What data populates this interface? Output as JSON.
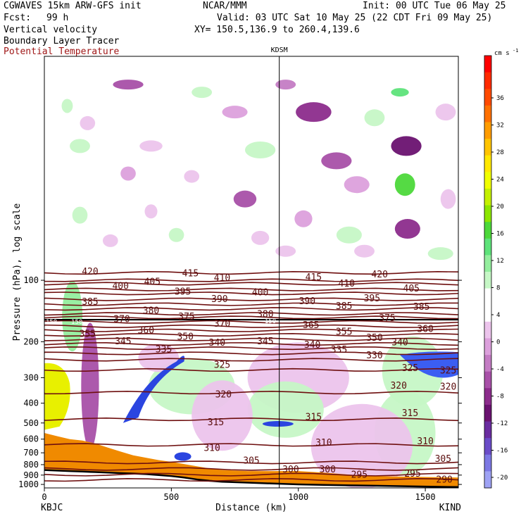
{
  "header": {
    "model": "CGWAVES 15km ARW-GFS init",
    "org": "NCAR/MMM",
    "init": "Init: 00 UTC Tue 06 May 25",
    "fcst_label": "Fcst:",
    "fcst_value": "99 h",
    "valid": "Valid: 03 UTC Sat 10 May 25 (22 CDT Fri 09 May 25)",
    "field1": "Vertical velocity",
    "xy": "XY= 150.5,136.9 to 260.4,139.6",
    "field2": "Boundary Layer Tracer",
    "field3": "Potential Temperature"
  },
  "colors": {
    "theta_line": "#6e0f0f",
    "terrain": "#f08a00",
    "ground": "#000000"
  },
  "chart_data": {
    "type": "cross-section",
    "title": "",
    "xlabel": "Distance (km)",
    "ylabel": "Pressure (hPa), log scale",
    "xlim": [
      0,
      1630
    ],
    "ylim": [
      1040,
      8
    ],
    "y_scale": "log",
    "x_ticks": [
      0,
      500,
      1000,
      1500
    ],
    "y_ticks": [
      100,
      200,
      300,
      400,
      500,
      600,
      700,
      800,
      900,
      1000
    ],
    "left_station": "KBJC",
    "right_station": "KIND",
    "mid_station": "KDSM",
    "mid_station_x": 925,
    "colorbar": {
      "unit": "cm s",
      "unit_exp": "-1",
      "tick_labels": [
        36,
        32,
        28,
        24,
        20,
        16,
        12,
        8,
        4,
        0,
        -4,
        -8,
        -12,
        -16,
        -20
      ],
      "colors": [
        "#ff0000",
        "#ff2a00",
        "#ff4a00",
        "#ff7000",
        "#ff9c00",
        "#ffc400",
        "#ffe800",
        "#f0ff00",
        "#c4f000",
        "#8ce600",
        "#4cd83a",
        "#5ee37a",
        "#94ee9e",
        "#c6f7c6",
        "#ffffff",
        "#ffffff",
        "#ecc4ec",
        "#dca0dc",
        "#c47cc4",
        "#a850a8",
        "#8c2c8c",
        "#6a1270",
        "#6a2ca0",
        "#6a4cc8",
        "#7c78e4",
        "#9ea2f4"
      ]
    },
    "isentropes": [
      {
        "theta": 420,
        "p": 92
      },
      {
        "theta": 415,
        "p": 100
      },
      {
        "theta": 410,
        "p": 104
      },
      {
        "theta": 405,
        "p": 111
      },
      {
        "theta": 400,
        "p": 116
      },
      {
        "theta": 395,
        "p": 124
      },
      {
        "theta": 390,
        "p": 131
      },
      {
        "theta": 385,
        "p": 138
      },
      {
        "theta": 380,
        "p": 146
      },
      {
        "theta": 375,
        "p": 152
      },
      {
        "theta": 370,
        "p": 160
      },
      {
        "theta": 365,
        "p": 168
      },
      {
        "theta": 360,
        "p": 176
      },
      {
        "theta": 355,
        "p": 185
      },
      {
        "theta": 350,
        "p": 195
      },
      {
        "theta": 345,
        "p": 205
      },
      {
        "theta": 340,
        "p": 215
      },
      {
        "theta": 335,
        "p": 228
      },
      {
        "theta": 330,
        "p": 245
      },
      {
        "theta": 325,
        "p": 275
      },
      {
        "theta": 320,
        "p": 355
      },
      {
        "theta": 315,
        "p": 480
      },
      {
        "theta": 310,
        "p": 640
      },
      {
        "theta": 305,
        "p": 780
      },
      {
        "theta": 300,
        "p": 840
      },
      {
        "theta": 295,
        "p": 895
      },
      {
        "theta": 290,
        "p": 950
      }
    ],
    "contour_labels": [
      {
        "text": "420",
        "x": 180,
        "p": 90
      },
      {
        "text": "415",
        "x": 575,
        "p": 92
      },
      {
        "text": "410",
        "x": 700,
        "p": 97
      },
      {
        "text": "400",
        "x": 300,
        "p": 106
      },
      {
        "text": "405",
        "x": 425,
        "p": 101
      },
      {
        "text": "395",
        "x": 545,
        "p": 113
      },
      {
        "text": "390",
        "x": 690,
        "p": 123
      },
      {
        "text": "400",
        "x": 850,
        "p": 114
      },
      {
        "text": "415",
        "x": 1060,
        "p": 96
      },
      {
        "text": "410",
        "x": 1190,
        "p": 103
      },
      {
        "text": "420",
        "x": 1320,
        "p": 93
      },
      {
        "text": "405",
        "x": 1445,
        "p": 109
      },
      {
        "text": "395",
        "x": 1290,
        "p": 122
      },
      {
        "text": "390",
        "x": 1035,
        "p": 126
      },
      {
        "text": "385",
        "x": 1180,
        "p": 133
      },
      {
        "text": "385",
        "x": 1485,
        "p": 134
      },
      {
        "text": "385",
        "x": 180,
        "p": 127
      },
      {
        "text": "380",
        "x": 420,
        "p": 140
      },
      {
        "text": "375",
        "x": 560,
        "p": 150
      },
      {
        "text": "380",
        "x": 870,
        "p": 146
      },
      {
        "text": "370",
        "x": 305,
        "p": 154
      },
      {
        "text": "370",
        "x": 700,
        "p": 162
      },
      {
        "text": "375",
        "x": 1350,
        "p": 152
      },
      {
        "text": "365",
        "x": 1050,
        "p": 165
      },
      {
        "text": "360",
        "x": 1500,
        "p": 172
      },
      {
        "text": "360",
        "x": 400,
        "p": 175
      },
      {
        "text": "355",
        "x": 170,
        "p": 182
      },
      {
        "text": "350",
        "x": 555,
        "p": 188
      },
      {
        "text": "355",
        "x": 1180,
        "p": 178
      },
      {
        "text": "345",
        "x": 310,
        "p": 198
      },
      {
        "text": "340",
        "x": 680,
        "p": 201
      },
      {
        "text": "345",
        "x": 870,
        "p": 198
      },
      {
        "text": "350",
        "x": 1300,
        "p": 190
      },
      {
        "text": "340",
        "x": 1400,
        "p": 200
      },
      {
        "text": "340",
        "x": 1055,
        "p": 206
      },
      {
        "text": "335",
        "x": 470,
        "p": 217
      },
      {
        "text": "335",
        "x": 1160,
        "p": 218
      },
      {
        "text": "330",
        "x": 1300,
        "p": 232
      },
      {
        "text": "325",
        "x": 700,
        "p": 258
      },
      {
        "text": "325",
        "x": 1440,
        "p": 268
      },
      {
        "text": "325",
        "x": 1590,
        "p": 275
      },
      {
        "text": "320",
        "x": 705,
        "p": 360
      },
      {
        "text": "320",
        "x": 1395,
        "p": 326
      },
      {
        "text": "320",
        "x": 1590,
        "p": 330
      },
      {
        "text": "315",
        "x": 675,
        "p": 494
      },
      {
        "text": "315",
        "x": 1060,
        "p": 465
      },
      {
        "text": "315",
        "x": 1440,
        "p": 445
      },
      {
        "text": "310",
        "x": 660,
        "p": 660
      },
      {
        "text": "310",
        "x": 1100,
        "p": 620
      },
      {
        "text": "310",
        "x": 1500,
        "p": 610
      },
      {
        "text": "305",
        "x": 815,
        "p": 760
      },
      {
        "text": "305",
        "x": 1570,
        "p": 745
      },
      {
        "text": "300",
        "x": 970,
        "p": 840
      },
      {
        "text": "300",
        "x": 1115,
        "p": 840
      },
      {
        "text": "295",
        "x": 1240,
        "p": 890
      },
      {
        "text": "295",
        "x": 1450,
        "p": 880
      },
      {
        "text": "290",
        "x": 1575,
        "p": 940
      },
      {
        "text": "150",
        "x": 28,
        "p": 157
      },
      {
        "text": "150",
        "x": 128,
        "p": 157
      },
      {
        "text": "150",
        "x": 890,
        "p": 156
      }
    ],
    "black_line_p": 156,
    "terrain": {
      "x": [
        0,
        50,
        100,
        150,
        200,
        250,
        300,
        350,
        400,
        450,
        500,
        550,
        600,
        650,
        700,
        800,
        900,
        1000,
        1100,
        1200,
        1300,
        1400,
        1500,
        1630
      ],
      "p_top": [
        560,
        580,
        600,
        610,
        630,
        660,
        690,
        720,
        740,
        760,
        775,
        795,
        815,
        835,
        850,
        860,
        860,
        860,
        875,
        895,
        910,
        915,
        920,
        925
      ],
      "p_bottom": [
        850,
        855,
        860,
        865,
        870,
        875,
        880,
        885,
        890,
        900,
        910,
        925,
        945,
        960,
        970,
        980,
        990,
        1000,
        1005,
        1010,
        1015,
        1020,
        1025,
        1030
      ]
    },
    "w_blobs": [
      {
        "x": 90,
        "p": 14,
        "rx": 22,
        "ry": 10,
        "c": "#c6f7c6"
      },
      {
        "x": 170,
        "p": 17,
        "rx": 30,
        "ry": 10,
        "c": "#ecc4ec"
      },
      {
        "x": 330,
        "p": 11,
        "rx": 60,
        "ry": 7,
        "c": "#a850a8"
      },
      {
        "x": 420,
        "p": 22,
        "rx": 45,
        "ry": 8,
        "c": "#ecc4ec"
      },
      {
        "x": 620,
        "p": 12,
        "rx": 40,
        "ry": 8,
        "c": "#c6f7c6"
      },
      {
        "x": 750,
        "p": 15,
        "rx": 50,
        "ry": 9,
        "c": "#dca0dc"
      },
      {
        "x": 950,
        "p": 11,
        "rx": 40,
        "ry": 7,
        "c": "#c47cc4"
      },
      {
        "x": 1060,
        "p": 15,
        "rx": 70,
        "ry": 14,
        "c": "#8c2c8c"
      },
      {
        "x": 1300,
        "p": 16,
        "rx": 40,
        "ry": 12,
        "c": "#c6f7c6"
      },
      {
        "x": 1425,
        "p": 22,
        "rx": 60,
        "ry": 14,
        "c": "#6a1270"
      },
      {
        "x": 1400,
        "p": 12,
        "rx": 35,
        "ry": 6,
        "c": "#5ee37a"
      },
      {
        "x": 1580,
        "p": 15,
        "rx": 40,
        "ry": 12,
        "c": "#ecc4ec"
      },
      {
        "x": 850,
        "p": 23,
        "rx": 60,
        "ry": 12,
        "c": "#c6f7c6"
      },
      {
        "x": 1150,
        "p": 26,
        "rx": 60,
        "ry": 12,
        "c": "#a850a8"
      },
      {
        "x": 1230,
        "p": 34,
        "rx": 50,
        "ry": 12,
        "c": "#dca0dc"
      },
      {
        "x": 1420,
        "p": 34,
        "rx": 40,
        "ry": 16,
        "c": "#4cd83a"
      },
      {
        "x": 1430,
        "p": 56,
        "rx": 50,
        "ry": 14,
        "c": "#8c2c8c"
      },
      {
        "x": 140,
        "p": 22,
        "rx": 40,
        "ry": 10,
        "c": "#c6f7c6"
      },
      {
        "x": 330,
        "p": 30,
        "rx": 30,
        "ry": 10,
        "c": "#dca0dc"
      },
      {
        "x": 580,
        "p": 31,
        "rx": 30,
        "ry": 9,
        "c": "#ecc4ec"
      },
      {
        "x": 140,
        "p": 48,
        "rx": 30,
        "ry": 12,
        "c": "#c6f7c6"
      },
      {
        "x": 420,
        "p": 46,
        "rx": 25,
        "ry": 10,
        "c": "#ecc4ec"
      },
      {
        "x": 790,
        "p": 40,
        "rx": 45,
        "ry": 12,
        "c": "#a850a8"
      },
      {
        "x": 1020,
        "p": 50,
        "rx": 35,
        "ry": 12,
        "c": "#dca0dc"
      },
      {
        "x": 1200,
        "p": 60,
        "rx": 50,
        "ry": 12,
        "c": "#c6f7c6"
      },
      {
        "x": 1590,
        "p": 40,
        "rx": 30,
        "ry": 14,
        "c": "#ecc4ec"
      },
      {
        "x": 520,
        "p": 60,
        "rx": 30,
        "ry": 10,
        "c": "#c6f7c6"
      },
      {
        "x": 260,
        "p": 64,
        "rx": 30,
        "ry": 9,
        "c": "#ecc4ec"
      },
      {
        "x": 850,
        "p": 62,
        "rx": 35,
        "ry": 10,
        "c": "#ecc4ec"
      },
      {
        "x": 1260,
        "p": 72,
        "rx": 40,
        "ry": 9,
        "c": "#ecc4ec"
      },
      {
        "x": 1560,
        "p": 74,
        "rx": 50,
        "ry": 9,
        "c": "#c6f7c6"
      },
      {
        "x": 950,
        "p": 72,
        "rx": 40,
        "ry": 8,
        "c": "#ecc4ec"
      },
      {
        "x": 110,
        "p": 150,
        "rx": 40,
        "ry": 50,
        "c": "#94ee9e"
      },
      {
        "x": 180,
        "p": 330,
        "rx": 35,
        "ry": 90,
        "c": "#a850a8"
      },
      {
        "x": 580,
        "p": 330,
        "rx": 170,
        "ry": 40,
        "c": "#c6f7c6"
      },
      {
        "x": 1000,
        "p": 300,
        "rx": 200,
        "ry": 50,
        "c": "#ecc4ec"
      },
      {
        "x": 1450,
        "p": 280,
        "rx": 120,
        "ry": 50,
        "c": "#c6f7c6"
      },
      {
        "x": 950,
        "p": 430,
        "rx": 150,
        "ry": 40,
        "c": "#c6f7c6"
      },
      {
        "x": 1420,
        "p": 560,
        "rx": 120,
        "ry": 60,
        "c": "#c6f7c6"
      },
      {
        "x": 1250,
        "p": 650,
        "rx": 200,
        "ry": 60,
        "c": "#ecc4ec"
      },
      {
        "x": 700,
        "p": 460,
        "rx": 120,
        "ry": 50,
        "c": "#ecc4ec"
      },
      {
        "x": 450,
        "p": 240,
        "rx": 80,
        "ry": 20,
        "c": "#ecc4ec"
      }
    ]
  }
}
